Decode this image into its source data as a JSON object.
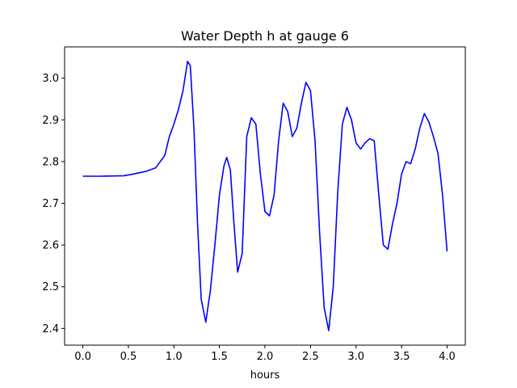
{
  "chart_data": {
    "type": "line",
    "title": "Water Depth h at gauge 6",
    "xlabel": "hours",
    "ylabel": "",
    "xlim": [
      -0.2,
      4.2
    ],
    "ylim": [
      2.36,
      3.075
    ],
    "grid": false,
    "xticks": [
      0.0,
      0.5,
      1.0,
      1.5,
      2.0,
      2.5,
      3.0,
      3.5,
      4.0
    ],
    "xtick_labels": [
      "0.0",
      "0.5",
      "1.0",
      "1.5",
      "2.0",
      "2.5",
      "3.0",
      "3.5",
      "4.0"
    ],
    "yticks": [
      2.4,
      2.5,
      2.6,
      2.7,
      2.8,
      2.9,
      3.0
    ],
    "ytick_labels": [
      "2.4",
      "2.5",
      "2.6",
      "2.7",
      "2.8",
      "2.9",
      "3.0"
    ],
    "series": [
      {
        "color": "#0000ff",
        "x": [
          0.0,
          0.2,
          0.45,
          0.55,
          0.7,
          0.8,
          0.9,
          0.95,
          1.0,
          1.05,
          1.1,
          1.15,
          1.18,
          1.22,
          1.26,
          1.3,
          1.35,
          1.4,
          1.45,
          1.5,
          1.55,
          1.58,
          1.62,
          1.66,
          1.7,
          1.75,
          1.8,
          1.85,
          1.9,
          1.95,
          2.0,
          2.05,
          2.1,
          2.15,
          2.2,
          2.25,
          2.3,
          2.35,
          2.4,
          2.45,
          2.5,
          2.55,
          2.6,
          2.65,
          2.7,
          2.75,
          2.8,
          2.85,
          2.9,
          2.95,
          3.0,
          3.05,
          3.1,
          3.15,
          3.2,
          3.25,
          3.3,
          3.35,
          3.4,
          3.45,
          3.5,
          3.55,
          3.6,
          3.65,
          3.7,
          3.75,
          3.8,
          3.85,
          3.9,
          3.95,
          4.0
        ],
        "y": [
          2.765,
          2.765,
          2.766,
          2.77,
          2.777,
          2.785,
          2.815,
          2.86,
          2.89,
          2.925,
          2.97,
          3.04,
          3.03,
          2.88,
          2.65,
          2.47,
          2.415,
          2.49,
          2.6,
          2.72,
          2.79,
          2.81,
          2.78,
          2.65,
          2.535,
          2.58,
          2.86,
          2.905,
          2.89,
          2.77,
          2.68,
          2.67,
          2.72,
          2.85,
          2.94,
          2.92,
          2.86,
          2.88,
          2.94,
          2.99,
          2.97,
          2.85,
          2.63,
          2.45,
          2.395,
          2.5,
          2.73,
          2.89,
          2.93,
          2.9,
          2.845,
          2.83,
          2.845,
          2.855,
          2.85,
          2.72,
          2.6,
          2.59,
          2.65,
          2.7,
          2.77,
          2.8,
          2.795,
          2.83,
          2.88,
          2.915,
          2.895,
          2.86,
          2.82,
          2.72,
          2.585
        ]
      }
    ]
  }
}
